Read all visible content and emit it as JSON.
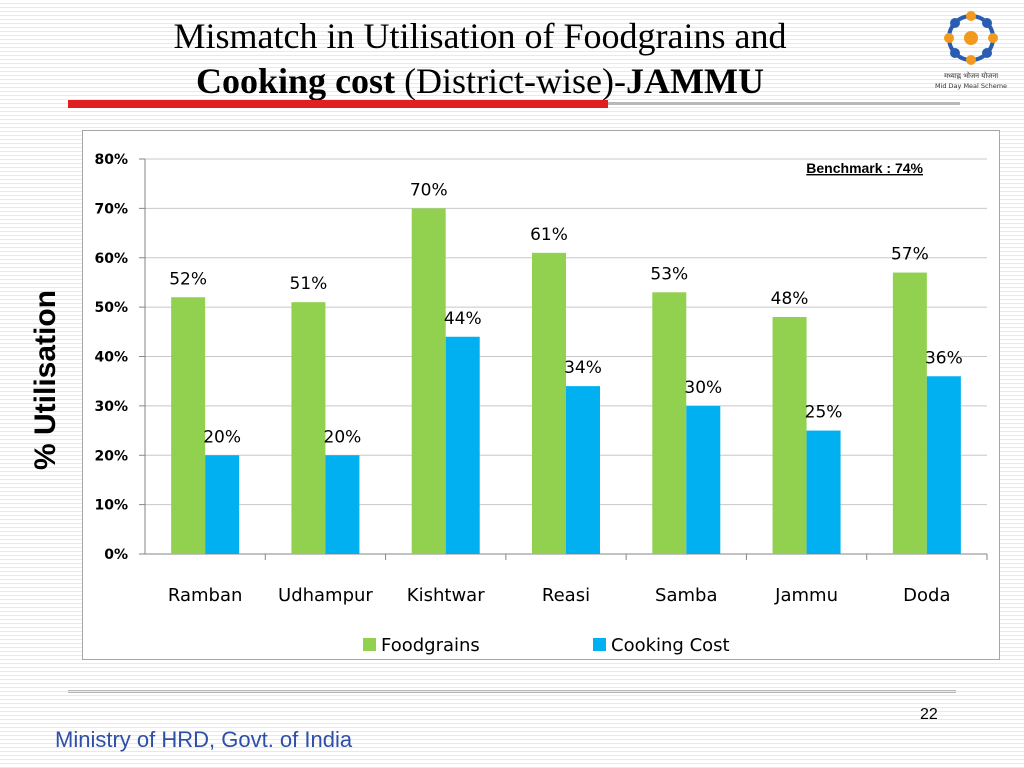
{
  "slide": {
    "title_line1": "Mismatch in Utilisation of Foodgrains and",
    "title_line2_bold": "Cooking cost",
    "title_line2_normal": " (District-wise)-",
    "title_line2_bold2": "JAMMU",
    "logo_text_hindi": "मध्याह्न भोजन योजना",
    "logo_text_en": "Mid Day Meal Scheme",
    "page_number": "22",
    "footer": "Ministry of HRD, Govt. of India",
    "accent_red": "#e02020",
    "footer_color": "#2e4fa8"
  },
  "chart_data": {
    "type": "bar",
    "categories": [
      "Ramban",
      "Udhampur",
      "Kishtwar",
      "Reasi",
      "Samba",
      "Jammu",
      "Doda"
    ],
    "series": [
      {
        "name": "Foodgrains",
        "color": "#92d050",
        "values": [
          52,
          51,
          70,
          61,
          53,
          48,
          57
        ]
      },
      {
        "name": "Cooking Cost",
        "color": "#00b0f0",
        "values": [
          20,
          20,
          44,
          34,
          30,
          25,
          36
        ]
      }
    ],
    "value_suffix": "%",
    "ylabel": "% Utilisation",
    "ylim": [
      0,
      80
    ],
    "yticks": [
      "0%",
      "10%",
      "20%",
      "30%",
      "40%",
      "50%",
      "60%",
      "70%",
      "80%"
    ],
    "grid": true,
    "legend_position": "bottom",
    "annotation": "Benchmark : 74%"
  }
}
